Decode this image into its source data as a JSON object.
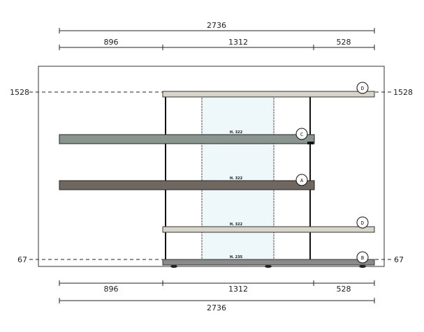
{
  "dimensions": {
    "top_total": "2736",
    "top_segments": [
      "896",
      "1312",
      "528"
    ],
    "bottom_segments": [
      "896",
      "1312",
      "528"
    ],
    "bottom_total": "2736",
    "level_top_left": "1528",
    "level_top_right": "1528",
    "level_bottom_left": "67",
    "level_bottom_right": "67"
  },
  "shelves": [
    {
      "tag": "D",
      "height_label": "",
      "color": "#d7d4c9"
    },
    {
      "tag": "C",
      "height_label": "H. 322",
      "color": "#8b9590"
    },
    {
      "tag": "A",
      "height_label": "H. 322",
      "color": "#6f6760"
    },
    {
      "tag": "D",
      "height_label": "H. 322",
      "color": "#d7d4c9"
    },
    {
      "tag": "B",
      "height_label": "H. 235",
      "color": "#8a8a8a"
    }
  ],
  "colors": {
    "glass_panel": "#eef7f9",
    "line": "#222222"
  }
}
